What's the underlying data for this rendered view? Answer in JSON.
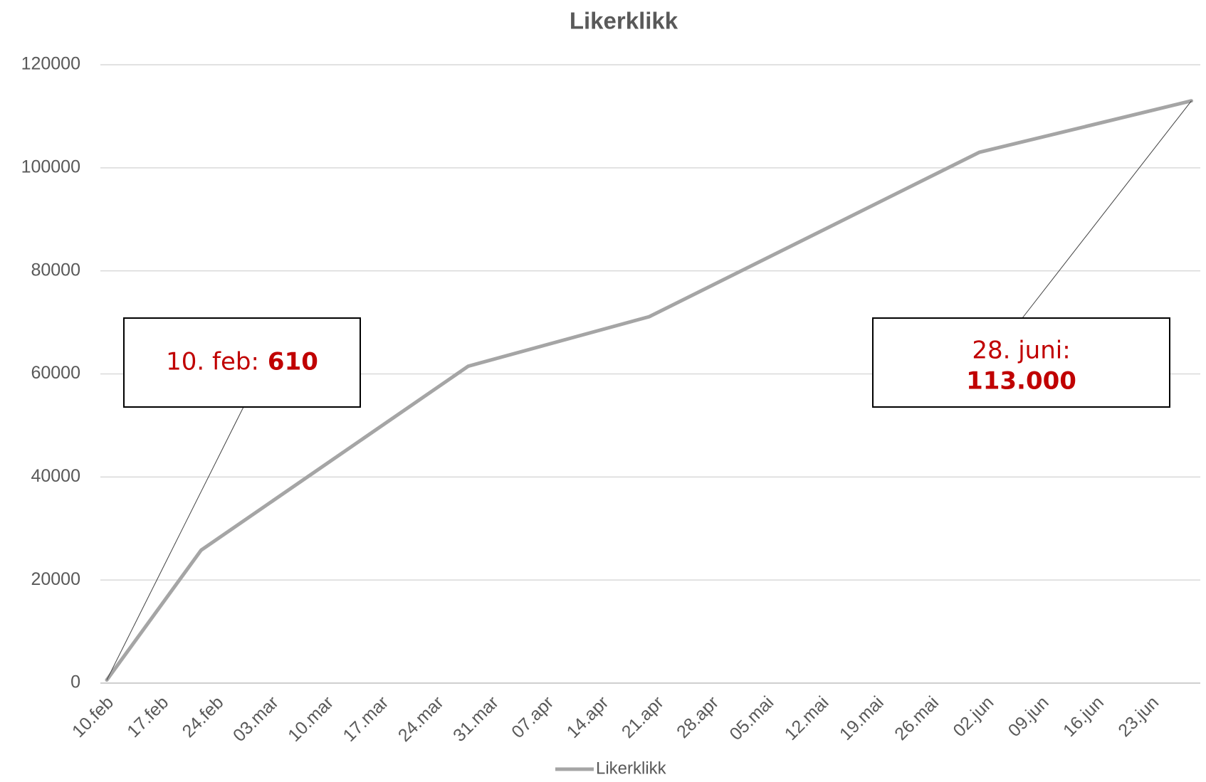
{
  "chart_data": {
    "type": "line",
    "title": "Likerklikk",
    "x": [
      "10.feb",
      "22.feb",
      "28.mar",
      "20.apr",
      "01.jun",
      "28.jun"
    ],
    "series": [
      {
        "name": "Likerklikk",
        "color": "#a5a5a5",
        "values": [
          610,
          25800,
          61500,
          71100,
          103000,
          113000
        ]
      }
    ],
    "xticks": [
      "10.feb",
      "17.feb",
      "24.feb",
      "03.mar",
      "10.mar",
      "17.mar",
      "24.mar",
      "31.mar",
      "07.apr",
      "14.apr",
      "21.apr",
      "28.apr",
      "05.mai",
      "12.mai",
      "19.mai",
      "26.mai",
      "02.jun",
      "09.jun",
      "16.jun",
      "23.jun"
    ],
    "ylim": [
      0,
      120000
    ],
    "yticks": [
      0,
      20000,
      40000,
      60000,
      80000,
      100000,
      120000
    ],
    "grid": true,
    "legend": "bottom",
    "annotations": [
      {
        "label": "10. feb:",
        "emphasis": "610"
      },
      {
        "label": "28. juni:",
        "emphasis": "113.000"
      }
    ]
  }
}
